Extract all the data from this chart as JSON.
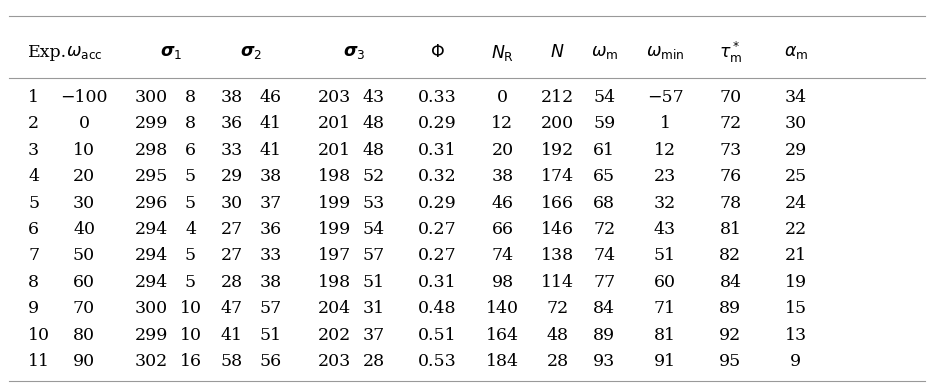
{
  "rows": [
    [
      "1",
      "-100",
      "300",
      "8",
      "38",
      "46",
      "203",
      "43",
      "0.33",
      "0",
      "212",
      "54",
      "-57",
      "70",
      "34"
    ],
    [
      "2",
      "0",
      "299",
      "8",
      "36",
      "41",
      "201",
      "48",
      "0.29",
      "12",
      "200",
      "59",
      "1",
      "72",
      "30"
    ],
    [
      "3",
      "10",
      "298",
      "6",
      "33",
      "41",
      "201",
      "48",
      "0.31",
      "20",
      "192",
      "61",
      "12",
      "73",
      "29"
    ],
    [
      "4",
      "20",
      "295",
      "5",
      "29",
      "38",
      "198",
      "52",
      "0.32",
      "38",
      "174",
      "65",
      "23",
      "76",
      "25"
    ],
    [
      "5",
      "30",
      "296",
      "5",
      "30",
      "37",
      "199",
      "53",
      "0.29",
      "46",
      "166",
      "68",
      "32",
      "78",
      "24"
    ],
    [
      "6",
      "40",
      "294",
      "4",
      "27",
      "36",
      "199",
      "54",
      "0.27",
      "66",
      "146",
      "72",
      "43",
      "81",
      "22"
    ],
    [
      "7",
      "50",
      "294",
      "5",
      "27",
      "33",
      "197",
      "57",
      "0.27",
      "74",
      "138",
      "74",
      "51",
      "82",
      "21"
    ],
    [
      "8",
      "60",
      "294",
      "5",
      "28",
      "38",
      "198",
      "51",
      "0.31",
      "98",
      "114",
      "77",
      "60",
      "84",
      "19"
    ],
    [
      "9",
      "70",
      "300",
      "10",
      "47",
      "57",
      "204",
      "31",
      "0.48",
      "140",
      "72",
      "84",
      "71",
      "89",
      "15"
    ],
    [
      "10",
      "80",
      "299",
      "10",
      "41",
      "51",
      "202",
      "37",
      "0.51",
      "164",
      "48",
      "89",
      "81",
      "92",
      "13"
    ],
    [
      "11",
      "90",
      "302",
      "16",
      "58",
      "56",
      "203",
      "28",
      "0.53",
      "184",
      "28",
      "93",
      "91",
      "95",
      "9"
    ]
  ],
  "background_color": "#ffffff",
  "text_color": "#000000",
  "font_size": 12.5,
  "line_color": "#aaaaaa",
  "figwidth": 9.34,
  "figheight": 3.89
}
